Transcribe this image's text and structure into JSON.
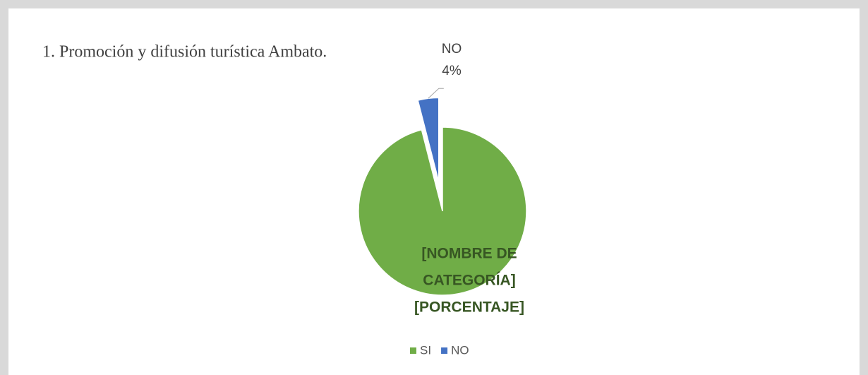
{
  "chart_data": {
    "type": "pie",
    "title": "1. Promoción y difusión turística Ambato.",
    "categories": [
      "SI",
      "NO"
    ],
    "values": [
      96,
      4
    ],
    "value_labels": [
      [
        "[NOMBRE DE",
        "CATEGORÍA]",
        "[PORCENTAJE]"
      ],
      "4%"
    ],
    "colors": [
      "#70ad47",
      "#4472c4"
    ],
    "exploded": [
      false,
      true
    ],
    "legend": "bottom"
  }
}
